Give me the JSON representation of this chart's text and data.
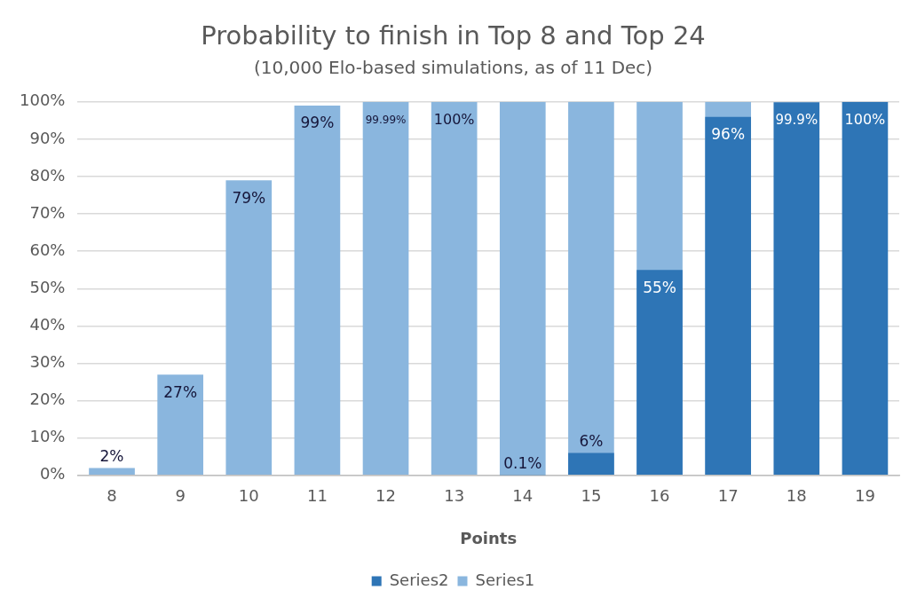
{
  "chart_data": {
    "type": "bar",
    "title": "Probability to finish in Top 8 and Top 24",
    "subtitle": "(10,000 Elo-based simulations, as of 11 Dec)",
    "xlabel": "Points",
    "categories": [
      "8",
      "9",
      "10",
      "11",
      "12",
      "13",
      "14",
      "15",
      "16",
      "17",
      "18",
      "19"
    ],
    "series": [
      {
        "name": "Series2",
        "color": "#2e75b6",
        "values": [
          null,
          null,
          null,
          null,
          null,
          null,
          0.1,
          6,
          55,
          96,
          99.9,
          100
        ],
        "value_labels": [
          null,
          null,
          null,
          null,
          null,
          null,
          "0.1%",
          "6%",
          "55%",
          "96%",
          "99.9%",
          "100%"
        ]
      },
      {
        "name": "Series1",
        "color": "#8ab6de",
        "values": [
          2,
          27,
          79,
          99,
          99.99,
          100,
          100,
          100,
          100,
          100,
          null,
          null
        ],
        "value_labels": [
          "2%",
          "27%",
          "79%",
          "99%",
          "99.99%",
          "100%",
          null,
          null,
          null,
          null,
          null,
          null
        ]
      }
    ],
    "ylim": [
      0,
      100
    ],
    "yticks": [
      {
        "value": 0,
        "label": "0%"
      },
      {
        "value": 10,
        "label": "10%"
      },
      {
        "value": 20,
        "label": "20%"
      },
      {
        "value": 30,
        "label": "30%"
      },
      {
        "value": 40,
        "label": "40%"
      },
      {
        "value": 50,
        "label": "50%"
      },
      {
        "value": 60,
        "label": "60%"
      },
      {
        "value": 70,
        "label": "70%"
      },
      {
        "value": 80,
        "label": "80%"
      },
      {
        "value": 90,
        "label": "90%"
      },
      {
        "value": 100,
        "label": "100%"
      }
    ],
    "grid": "y",
    "legend": "bottom"
  }
}
